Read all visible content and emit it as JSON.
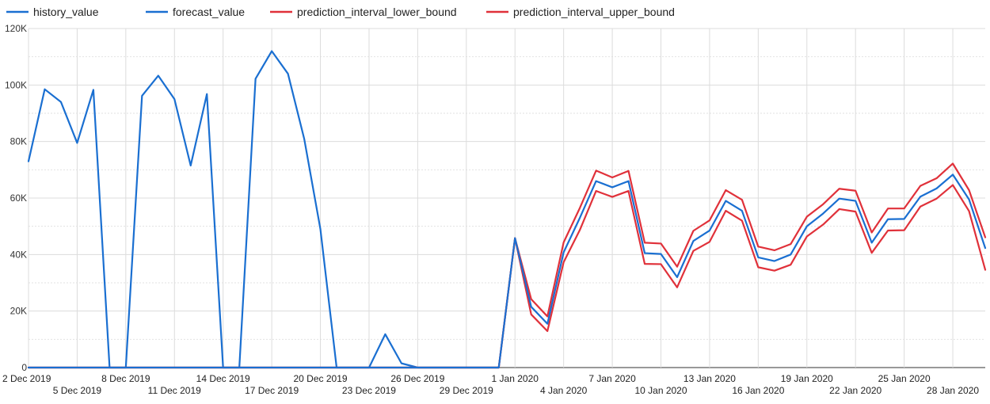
{
  "chart_data": {
    "type": "line",
    "x": [
      "2 Dec 2019",
      "3 Dec 2019",
      "4 Dec 2019",
      "5 Dec 2019",
      "6 Dec 2019",
      "7 Dec 2019",
      "8 Dec 2019",
      "9 Dec 2019",
      "10 Dec 2019",
      "11 Dec 2019",
      "12 Dec 2019",
      "13 Dec 2019",
      "14 Dec 2019",
      "15 Dec 2019",
      "16 Dec 2019",
      "17 Dec 2019",
      "18 Dec 2019",
      "19 Dec 2019",
      "20 Dec 2019",
      "21 Dec 2019",
      "22 Dec 2019",
      "23 Dec 2019",
      "24 Dec 2019",
      "25 Dec 2019",
      "26 Dec 2019",
      "27 Dec 2019",
      "28 Dec 2019",
      "29 Dec 2019",
      "30 Dec 2019",
      "31 Dec 2019",
      "1 Jan 2020",
      "2 Jan 2020",
      "3 Jan 2020",
      "4 Jan 2020",
      "5 Jan 2020",
      "6 Jan 2020",
      "7 Jan 2020",
      "8 Jan 2020",
      "9 Jan 2020",
      "10 Jan 2020",
      "11 Jan 2020",
      "12 Jan 2020",
      "13 Jan 2020",
      "14 Jan 2020",
      "15 Jan 2020",
      "16 Jan 2020",
      "17 Jan 2020",
      "18 Jan 2020",
      "19 Jan 2020",
      "20 Jan 2020",
      "21 Jan 2020",
      "22 Jan 2020",
      "23 Jan 2020",
      "24 Jan 2020",
      "25 Jan 2020",
      "26 Jan 2020",
      "27 Jan 2020",
      "28 Jan 2020",
      "29 Jan 2020",
      "30 Jan 2020"
    ],
    "x_tick_labels": [
      {
        "label": "2 Dec 2019",
        "row": 1
      },
      {
        "label": "5 Dec 2019",
        "row": 2
      },
      {
        "label": "8 Dec 2019",
        "row": 1
      },
      {
        "label": "11 Dec 2019",
        "row": 2
      },
      {
        "label": "14 Dec 2019",
        "row": 1
      },
      {
        "label": "17 Dec 2019",
        "row": 2
      },
      {
        "label": "20 Dec 2019",
        "row": 1
      },
      {
        "label": "23 Dec 2019",
        "row": 2
      },
      {
        "label": "26 Dec 2019",
        "row": 1
      },
      {
        "label": "29 Dec 2019",
        "row": 2
      },
      {
        "label": "1 Jan 2020",
        "row": 1
      },
      {
        "label": "4 Jan 2020",
        "row": 2
      },
      {
        "label": "7 Jan 2020",
        "row": 1
      },
      {
        "label": "10 Jan 2020",
        "row": 2
      },
      {
        "label": "13 Jan 2020",
        "row": 1
      },
      {
        "label": "16 Jan 2020",
        "row": 2
      },
      {
        "label": "19 Jan 2020",
        "row": 1
      },
      {
        "label": "22 Jan 2020",
        "row": 2
      },
      {
        "label": "25 Jan 2020",
        "row": 1
      },
      {
        "label": "28 Jan 2020",
        "row": 2
      }
    ],
    "y_ticks": [
      {
        "value": 0,
        "label": "0"
      },
      {
        "value": 20000,
        "label": "20K"
      },
      {
        "value": 40000,
        "label": "40K"
      },
      {
        "value": 60000,
        "label": "60K"
      },
      {
        "value": 80000,
        "label": "80K"
      },
      {
        "value": 100000,
        "label": "100K"
      },
      {
        "value": 120000,
        "label": "120K"
      }
    ],
    "ylim": [
      0,
      120000
    ],
    "grid": true,
    "legend_position": "top-left",
    "title": "",
    "xlabel": "",
    "ylabel": "",
    "series": [
      {
        "name": "history_value",
        "color": "#1a6fd1",
        "values": [
          73000,
          98500,
          94000,
          79500,
          98300,
          0,
          0,
          96200,
          103300,
          95000,
          71500,
          96800,
          0,
          0,
          102200,
          112000,
          104000,
          81000,
          49000,
          0,
          0,
          0,
          11800,
          1500,
          0,
          0,
          0,
          0,
          0,
          0,
          null,
          null,
          null,
          null,
          null,
          null,
          null,
          null,
          null,
          null,
          null,
          null,
          null,
          null,
          null,
          null,
          null,
          null,
          null,
          null,
          null,
          null,
          null,
          null,
          null,
          null,
          null,
          null,
          null,
          null
        ]
      },
      {
        "name": "forecast_value",
        "color": "#1a6fd1",
        "values": [
          0,
          0,
          0,
          0,
          0,
          0,
          0,
          0,
          0,
          0,
          0,
          0,
          0,
          0,
          0,
          0,
          0,
          0,
          0,
          0,
          0,
          0,
          0,
          0,
          0,
          0,
          0,
          0,
          0,
          0,
          45800,
          21500,
          15500,
          40800,
          53000,
          66000,
          63800,
          66000,
          40500,
          40200,
          32000,
          44800,
          48500,
          59000,
          55500,
          39000,
          37700,
          40000,
          50000,
          54500,
          59800,
          59000,
          44200,
          52500,
          52600,
          60500,
          63400,
          68300,
          59500,
          42300
        ]
      },
      {
        "name": "prediction_interval_lower_bound",
        "color": "#e0313a",
        "values": [
          0,
          0,
          0,
          0,
          0,
          0,
          0,
          0,
          0,
          0,
          0,
          0,
          0,
          0,
          0,
          0,
          0,
          0,
          0,
          0,
          0,
          0,
          0,
          0,
          0,
          0,
          0,
          0,
          0,
          0,
          45800,
          18800,
          12900,
          37300,
          48700,
          62500,
          60400,
          62500,
          36700,
          36600,
          28400,
          41300,
          44500,
          55500,
          52000,
          35500,
          34300,
          36400,
          46400,
          50600,
          56100,
          55200,
          40600,
          48500,
          48600,
          57000,
          59800,
          64600,
          55400,
          34600
        ]
      },
      {
        "name": "prediction_interval_upper_bound",
        "color": "#e0313a",
        "values": [
          0,
          0,
          0,
          0,
          0,
          0,
          0,
          0,
          0,
          0,
          0,
          0,
          0,
          0,
          0,
          0,
          0,
          0,
          0,
          0,
          0,
          0,
          0,
          0,
          0,
          0,
          0,
          0,
          0,
          0,
          45800,
          24200,
          18100,
          44300,
          56500,
          69700,
          67300,
          69600,
          44200,
          43900,
          35700,
          48400,
          52100,
          62800,
          59400,
          42800,
          41500,
          43700,
          53400,
          57800,
          63300,
          62600,
          47800,
          56300,
          56300,
          64300,
          67000,
          72200,
          62800,
          46100
        ]
      }
    ]
  },
  "legend": {
    "items": [
      {
        "name": "history_value",
        "color": "#1a6fd1"
      },
      {
        "name": "forecast_value",
        "color": "#1a6fd1"
      },
      {
        "name": "prediction_interval_lower_bound",
        "color": "#e0313a"
      },
      {
        "name": "prediction_interval_upper_bound",
        "color": "#e0313a"
      }
    ]
  }
}
